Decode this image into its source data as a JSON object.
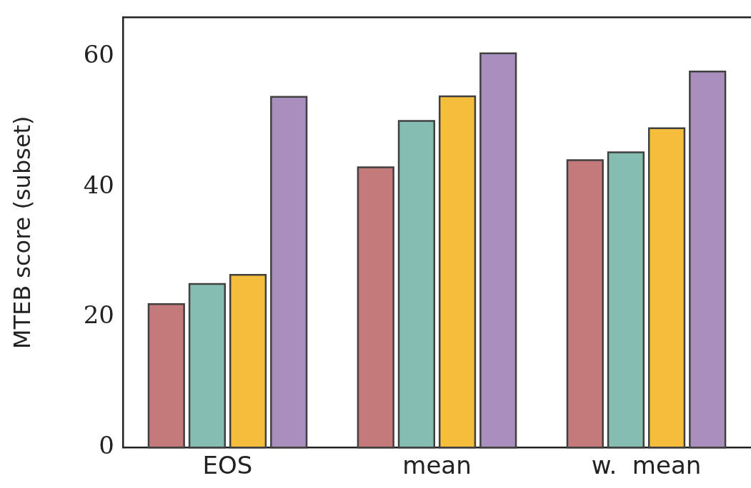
{
  "chart_data": {
    "type": "bar",
    "ylabel": "MTEB score (subset)",
    "categories": [
      "EOS",
      "mean",
      "w.  mean"
    ],
    "series": [
      {
        "color": "#c47a7a",
        "values": [
          22.0,
          43.0,
          44.1
        ]
      },
      {
        "color": "#86bdb3",
        "values": [
          25.1,
          50.1,
          45.3
        ]
      },
      {
        "color": "#f4be3c",
        "values": [
          26.5,
          53.9,
          49.0
        ]
      },
      {
        "color": "#a88fbe",
        "values": [
          53.8,
          60.5,
          57.7
        ]
      }
    ],
    "ylim": [
      0,
      66
    ],
    "yticks": [
      0,
      20,
      40,
      60
    ],
    "grid": false,
    "legend": false
  }
}
